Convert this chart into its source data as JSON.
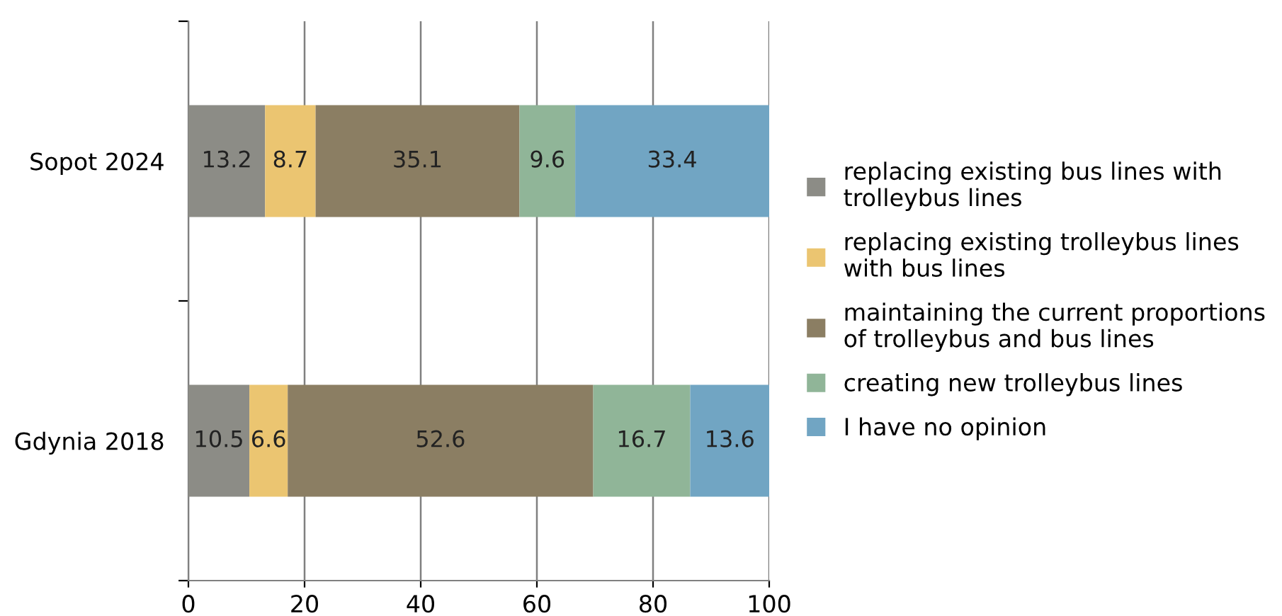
{
  "chart_data": {
    "type": "bar",
    "orientation": "horizontal",
    "stacked": true,
    "data_labels": true,
    "categories": [
      "Sopot 2024",
      "Gdynia 2018"
    ],
    "series": [
      {
        "name": "replacing existing bus lines with trolleybus lines",
        "color": "#8c8c86",
        "values": [
          13.2,
          10.5
        ]
      },
      {
        "name": "replacing existing trolleybus lines with bus lines",
        "color": "#ebc571",
        "values": [
          8.7,
          6.6
        ]
      },
      {
        "name": "maintaining the current proportions of trolleybus and bus lines",
        "color": "#8b7e63",
        "values": [
          35.1,
          52.6
        ]
      },
      {
        "name": "creating new trolleybus lines",
        "color": "#90b598",
        "values": [
          9.6,
          16.7
        ]
      },
      {
        "name": "I have no opinion",
        "color": "#71a5c3",
        "values": [
          33.4,
          13.6
        ]
      }
    ],
    "xlim": [
      0,
      100
    ],
    "xticks": [
      0,
      20,
      40,
      60,
      80,
      100
    ],
    "grid": "x",
    "legend": "right"
  }
}
